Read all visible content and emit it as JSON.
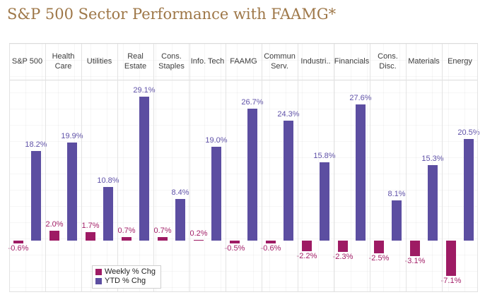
{
  "title": "S&P 500 Sector Performance with FAAMG*",
  "colors": {
    "title_text": "#9e7748",
    "header_text": "#3d3d3d",
    "grid_line": "#e3e3e3",
    "weekly": "#9e1b64",
    "ytd": "#5c4ea1"
  },
  "chart_data": {
    "type": "bar",
    "title": "S&P 500 Sector Performance with FAAMG*",
    "categories": [
      "S&P 500",
      "Health Care",
      "Utilities",
      "Real Estate",
      "Cons. Staples",
      "Info. Tech",
      "FAAMG",
      "Commun Serv.",
      "Industri..",
      "Financials",
      "Cons. Disc.",
      "Materials",
      "Energy"
    ],
    "series": [
      {
        "name": "Weekly % Chg",
        "color": "#9e1b64",
        "label_color": "#a32068",
        "values": [
          -0.6,
          2.0,
          1.7,
          0.7,
          0.7,
          0.2,
          -0.5,
          -0.6,
          -2.2,
          -2.3,
          -2.5,
          -3.1,
          -7.1
        ],
        "labels": [
          "-0.6%",
          "2.0%",
          "1.7%",
          "0.7%",
          "0.7%",
          "0.2%",
          "-0.5%",
          "-0.6%",
          "-2.2%",
          "-2.3%",
          "-2.5%",
          "-3.1%",
          "-7.1%"
        ]
      },
      {
        "name": "YTD % Chg",
        "color": "#5c4ea1",
        "label_color": "#5f51a8",
        "values": [
          18.2,
          19.9,
          10.8,
          29.1,
          8.4,
          19.0,
          26.7,
          24.3,
          15.8,
          27.6,
          8.1,
          15.3,
          20.5
        ],
        "labels": [
          "18.2%",
          "19.9%",
          "10.8%",
          "29.1%",
          "8.4%",
          "19.0%",
          "26.7%",
          "24.3%",
          "15.8%",
          "27.6%",
          "8.1%",
          "15.3%",
          "20.5%"
        ]
      }
    ],
    "ylim": [
      -10.3,
      32.4
    ],
    "xlabel": "",
    "ylabel": "",
    "grid": true,
    "legend_position": "inside-bottom-left"
  }
}
